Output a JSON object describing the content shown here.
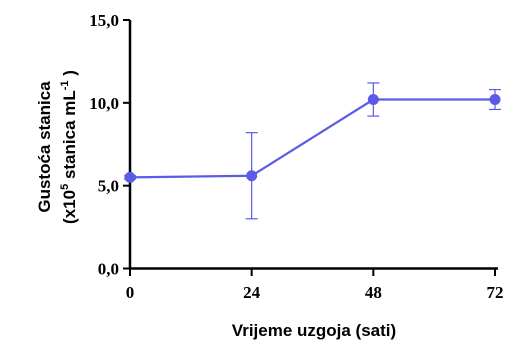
{
  "chart_data": {
    "type": "line",
    "x": [
      0,
      24,
      48,
      72
    ],
    "series": [
      {
        "values": [
          5.5,
          5.6,
          10.2,
          10.2
        ],
        "error": [
          0.1,
          2.6,
          1.0,
          0.6
        ],
        "color": "#5b5be8"
      }
    ],
    "xlabel": "Vrijeme uzgoja (sati)",
    "ylabel_line1": "Gustoća stanica",
    "ylabel_line2_pre": "(x10",
    "ylabel_line2_exp1": "5",
    "ylabel_line2_mid": " stanica mL",
    "ylabel_line2_exp2": "-1",
    "ylabel_line2_post": " )",
    "x_ticks": [
      "0",
      "24",
      "48",
      "72"
    ],
    "y_ticks": [
      "0,0",
      "5,0",
      "10,0",
      "15,0"
    ],
    "xlim": [
      0,
      72
    ],
    "ylim": [
      0,
      15
    ],
    "grid": false
  }
}
